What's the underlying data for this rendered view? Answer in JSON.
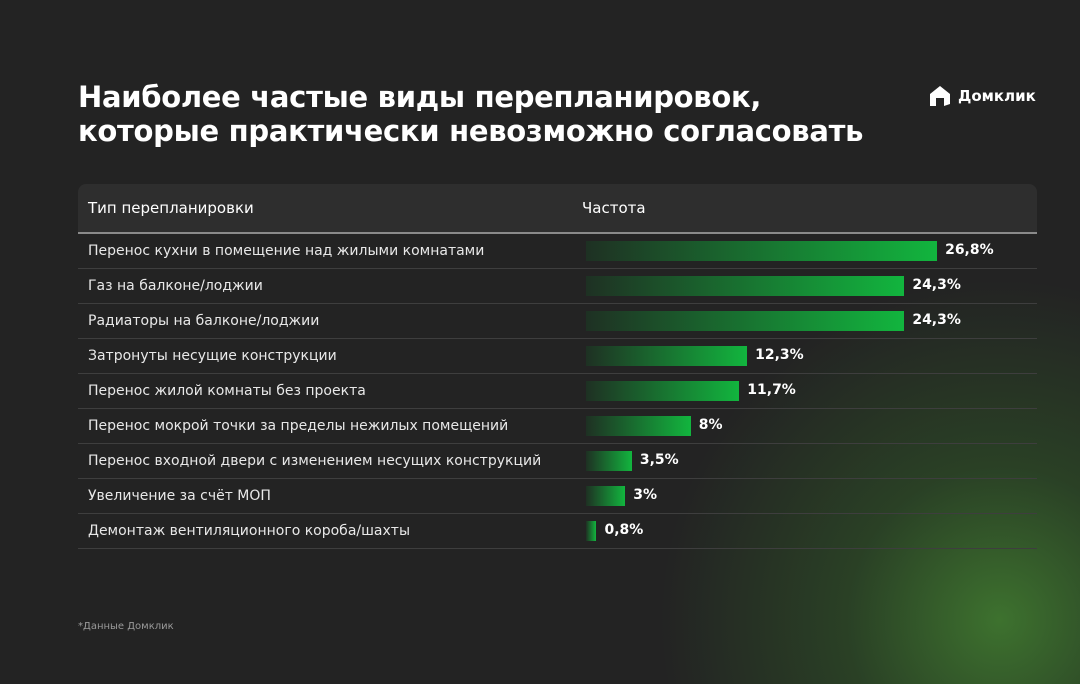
{
  "title_line1": "Наиболее частые виды перепланировок,",
  "title_line2": "которые практически невозможно согласовать",
  "logo": "Домклик",
  "footnote": "*Данные Домклик",
  "chart_data": {
    "type": "bar",
    "orientation": "horizontal",
    "headers": [
      "Тип перепланировки",
      "Частота"
    ],
    "categories": [
      "Перенос кухни в помещение над жилыми комнатами",
      "Газ на балконе/лоджии",
      "Радиаторы на балконе/лоджии",
      "Затронуты несущие конструкции",
      "Перенос жилой комнаты без проекта",
      "Перенос мокрой точки за пределы нежилых помещений",
      "Перенос входной двери с изменением несущих конструкций",
      "Увеличение за счёт МОП",
      "Демонтаж вентиляционного короба/шахты"
    ],
    "values": [
      26.8,
      24.3,
      24.3,
      12.3,
      11.7,
      8,
      3.5,
      3,
      0.8
    ],
    "labels": [
      "26,8%",
      "24,3%",
      "24,3%",
      "12,3%",
      "11,7%",
      "8%",
      "3,5%",
      "3%",
      "0,8%"
    ],
    "bar_color": "#12b53e"
  }
}
